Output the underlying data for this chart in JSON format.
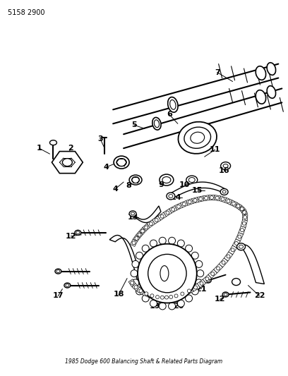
{
  "part_number": "5158 2900",
  "background_color": "#ffffff",
  "line_color": "#000000",
  "figsize": [
    4.08,
    5.33
  ],
  "dpi": 100,
  "label_fontsize": 8,
  "part_number_fontsize": 7
}
